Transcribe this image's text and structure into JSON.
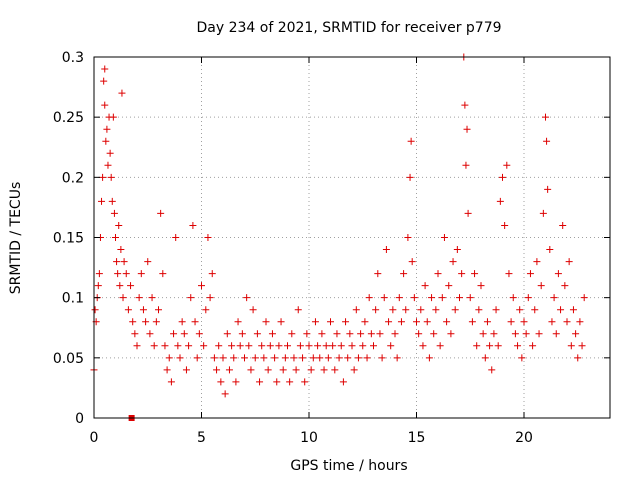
{
  "chart_data": {
    "type": "scatter",
    "title": "Day 234 of 2021, SRMTID for receiver p779",
    "xlabel": "GPS time / hours",
    "ylabel": "SRMTID / TECUs",
    "xlim": [
      0,
      24
    ],
    "ylim": [
      0,
      0.3
    ],
    "xticks": [
      0,
      5,
      10,
      15,
      20
    ],
    "yticks": [
      0,
      0.05,
      0.1,
      0.15,
      0.2,
      0.25,
      0.3
    ],
    "xtick_labels": [
      "0",
      "5",
      "10",
      "15",
      "20"
    ],
    "ytick_labels": [
      "0",
      "0.05",
      "0.1",
      "0.15",
      "0.2",
      "0.25",
      "0.3"
    ],
    "grid": true,
    "marker": "plus",
    "color": "#dd0000",
    "series": [
      {
        "name": "SRMTID",
        "points": [
          [
            0.0,
            0.04
          ],
          [
            0.05,
            0.09
          ],
          [
            0.1,
            0.08
          ],
          [
            0.15,
            0.1
          ],
          [
            0.2,
            0.11
          ],
          [
            0.25,
            0.12
          ],
          [
            0.3,
            0.15
          ],
          [
            0.35,
            0.18
          ],
          [
            0.4,
            0.2
          ],
          [
            0.45,
            0.28
          ],
          [
            0.5,
            0.29
          ],
          [
            0.5,
            0.26
          ],
          [
            0.55,
            0.23
          ],
          [
            0.6,
            0.24
          ],
          [
            0.65,
            0.21
          ],
          [
            0.7,
            0.25
          ],
          [
            0.75,
            0.22
          ],
          [
            0.8,
            0.2
          ],
          [
            0.85,
            0.18
          ],
          [
            0.9,
            0.25
          ],
          [
            0.95,
            0.17
          ],
          [
            1.0,
            0.15
          ],
          [
            1.05,
            0.13
          ],
          [
            1.1,
            0.12
          ],
          [
            1.15,
            0.16
          ],
          [
            1.2,
            0.11
          ],
          [
            1.25,
            0.14
          ],
          [
            1.3,
            0.27
          ],
          [
            1.35,
            0.1
          ],
          [
            1.4,
            0.13
          ],
          [
            1.5,
            0.12
          ],
          [
            1.6,
            0.09
          ],
          [
            1.7,
            0.11
          ],
          [
            1.8,
            0.08
          ],
          [
            1.9,
            0.07
          ],
          [
            2.0,
            0.06
          ],
          [
            2.1,
            0.1
          ],
          [
            2.2,
            0.12
          ],
          [
            2.3,
            0.09
          ],
          [
            2.4,
            0.08
          ],
          [
            2.5,
            0.13
          ],
          [
            2.6,
            0.07
          ],
          [
            2.7,
            0.1
          ],
          [
            2.8,
            0.06
          ],
          [
            2.9,
            0.08
          ],
          [
            3.0,
            0.09
          ],
          [
            3.1,
            0.17
          ],
          [
            3.2,
            0.12
          ],
          [
            3.3,
            0.06
          ],
          [
            3.4,
            0.04
          ],
          [
            3.5,
            0.05
          ],
          [
            3.6,
            0.03
          ],
          [
            3.7,
            0.07
          ],
          [
            3.8,
            0.15
          ],
          [
            3.9,
            0.06
          ],
          [
            4.0,
            0.05
          ],
          [
            4.1,
            0.08
          ],
          [
            4.2,
            0.07
          ],
          [
            4.3,
            0.04
          ],
          [
            4.4,
            0.06
          ],
          [
            4.5,
            0.1
          ],
          [
            4.6,
            0.16
          ],
          [
            4.7,
            0.08
          ],
          [
            4.8,
            0.05
          ],
          [
            4.9,
            0.07
          ],
          [
            5.0,
            0.11
          ],
          [
            5.1,
            0.06
          ],
          [
            5.2,
            0.09
          ],
          [
            5.3,
            0.15
          ],
          [
            5.4,
            0.1
          ],
          [
            5.5,
            0.12
          ],
          [
            5.6,
            0.05
          ],
          [
            5.7,
            0.04
          ],
          [
            5.8,
            0.06
          ],
          [
            5.9,
            0.03
          ],
          [
            6.0,
            0.05
          ],
          [
            6.1,
            0.02
          ],
          [
            6.2,
            0.07
          ],
          [
            6.3,
            0.04
          ],
          [
            6.4,
            0.06
          ],
          [
            6.5,
            0.05
          ],
          [
            6.6,
            0.03
          ],
          [
            6.7,
            0.08
          ],
          [
            6.8,
            0.06
          ],
          [
            6.9,
            0.07
          ],
          [
            7.0,
            0.05
          ],
          [
            7.1,
            0.1
          ],
          [
            7.2,
            0.06
          ],
          [
            7.3,
            0.04
          ],
          [
            7.4,
            0.09
          ],
          [
            7.5,
            0.05
          ],
          [
            7.6,
            0.07
          ],
          [
            7.7,
            0.03
          ],
          [
            7.8,
            0.06
          ],
          [
            7.9,
            0.05
          ],
          [
            8.0,
            0.08
          ],
          [
            8.1,
            0.04
          ],
          [
            8.2,
            0.06
          ],
          [
            8.3,
            0.07
          ],
          [
            8.4,
            0.05
          ],
          [
            8.5,
            0.03
          ],
          [
            8.6,
            0.06
          ],
          [
            8.7,
            0.08
          ],
          [
            8.8,
            0.04
          ],
          [
            8.9,
            0.05
          ],
          [
            9.0,
            0.06
          ],
          [
            9.1,
            0.03
          ],
          [
            9.2,
            0.07
          ],
          [
            9.3,
            0.05
          ],
          [
            9.4,
            0.04
          ],
          [
            9.5,
            0.09
          ],
          [
            9.6,
            0.06
          ],
          [
            9.7,
            0.05
          ],
          [
            9.8,
            0.03
          ],
          [
            9.9,
            0.07
          ],
          [
            10.0,
            0.06
          ],
          [
            10.1,
            0.04
          ],
          [
            10.2,
            0.05
          ],
          [
            10.3,
            0.08
          ],
          [
            10.4,
            0.06
          ],
          [
            10.5,
            0.05
          ],
          [
            10.6,
            0.07
          ],
          [
            10.7,
            0.04
          ],
          [
            10.8,
            0.06
          ],
          [
            10.9,
            0.05
          ],
          [
            11.0,
            0.08
          ],
          [
            11.1,
            0.06
          ],
          [
            11.2,
            0.04
          ],
          [
            11.3,
            0.07
          ],
          [
            11.4,
            0.05
          ],
          [
            11.5,
            0.06
          ],
          [
            11.6,
            0.03
          ],
          [
            11.7,
            0.08
          ],
          [
            11.8,
            0.05
          ],
          [
            11.9,
            0.07
          ],
          [
            12.0,
            0.06
          ],
          [
            12.1,
            0.04
          ],
          [
            12.2,
            0.09
          ],
          [
            12.3,
            0.05
          ],
          [
            12.4,
            0.07
          ],
          [
            12.5,
            0.06
          ],
          [
            12.6,
            0.08
          ],
          [
            12.7,
            0.05
          ],
          [
            12.8,
            0.1
          ],
          [
            12.9,
            0.07
          ],
          [
            13.0,
            0.06
          ],
          [
            13.1,
            0.09
          ],
          [
            13.2,
            0.12
          ],
          [
            13.3,
            0.07
          ],
          [
            13.4,
            0.05
          ],
          [
            13.5,
            0.1
          ],
          [
            13.6,
            0.14
          ],
          [
            13.7,
            0.08
          ],
          [
            13.8,
            0.06
          ],
          [
            13.9,
            0.09
          ],
          [
            14.0,
            0.07
          ],
          [
            14.1,
            0.05
          ],
          [
            14.2,
            0.1
          ],
          [
            14.3,
            0.08
          ],
          [
            14.4,
            0.12
          ],
          [
            14.5,
            0.09
          ],
          [
            14.6,
            0.15
          ],
          [
            14.7,
            0.2
          ],
          [
            14.75,
            0.23
          ],
          [
            14.8,
            0.13
          ],
          [
            14.9,
            0.1
          ],
          [
            15.0,
            0.08
          ],
          [
            15.1,
            0.07
          ],
          [
            15.2,
            0.09
          ],
          [
            15.3,
            0.06
          ],
          [
            15.4,
            0.11
          ],
          [
            15.5,
            0.08
          ],
          [
            15.6,
            0.05
          ],
          [
            15.7,
            0.1
          ],
          [
            15.8,
            0.07
          ],
          [
            15.9,
            0.09
          ],
          [
            16.0,
            0.12
          ],
          [
            16.1,
            0.06
          ],
          [
            16.2,
            0.1
          ],
          [
            16.3,
            0.15
          ],
          [
            16.4,
            0.08
          ],
          [
            16.5,
            0.11
          ],
          [
            16.6,
            0.07
          ],
          [
            16.7,
            0.13
          ],
          [
            16.8,
            0.09
          ],
          [
            16.9,
            0.14
          ],
          [
            17.0,
            0.1
          ],
          [
            17.1,
            0.12
          ],
          [
            17.2,
            0.3
          ],
          [
            17.25,
            0.26
          ],
          [
            17.3,
            0.21
          ],
          [
            17.35,
            0.24
          ],
          [
            17.4,
            0.17
          ],
          [
            17.5,
            0.1
          ],
          [
            17.6,
            0.08
          ],
          [
            17.7,
            0.12
          ],
          [
            17.8,
            0.06
          ],
          [
            17.9,
            0.09
          ],
          [
            18.0,
            0.11
          ],
          [
            18.1,
            0.07
          ],
          [
            18.2,
            0.05
          ],
          [
            18.3,
            0.08
          ],
          [
            18.4,
            0.06
          ],
          [
            18.5,
            0.04
          ],
          [
            18.6,
            0.07
          ],
          [
            18.7,
            0.09
          ],
          [
            18.8,
            0.06
          ],
          [
            18.9,
            0.18
          ],
          [
            19.0,
            0.2
          ],
          [
            19.1,
            0.16
          ],
          [
            19.2,
            0.21
          ],
          [
            19.3,
            0.12
          ],
          [
            19.4,
            0.08
          ],
          [
            19.5,
            0.1
          ],
          [
            19.6,
            0.07
          ],
          [
            19.7,
            0.06
          ],
          [
            19.8,
            0.09
          ],
          [
            19.9,
            0.05
          ],
          [
            20.0,
            0.08
          ],
          [
            20.1,
            0.07
          ],
          [
            20.2,
            0.1
          ],
          [
            20.3,
            0.12
          ],
          [
            20.4,
            0.06
          ],
          [
            20.5,
            0.09
          ],
          [
            20.6,
            0.13
          ],
          [
            20.7,
            0.07
          ],
          [
            20.8,
            0.11
          ],
          [
            20.9,
            0.17
          ],
          [
            21.0,
            0.25
          ],
          [
            21.05,
            0.23
          ],
          [
            21.1,
            0.19
          ],
          [
            21.2,
            0.14
          ],
          [
            21.3,
            0.08
          ],
          [
            21.4,
            0.1
          ],
          [
            21.5,
            0.07
          ],
          [
            21.6,
            0.12
          ],
          [
            21.7,
            0.09
          ],
          [
            21.8,
            0.16
          ],
          [
            21.9,
            0.11
          ],
          [
            22.0,
            0.08
          ],
          [
            22.1,
            0.13
          ],
          [
            22.2,
            0.06
          ],
          [
            22.3,
            0.09
          ],
          [
            22.4,
            0.07
          ],
          [
            22.5,
            0.05
          ],
          [
            22.6,
            0.08
          ],
          [
            22.7,
            0.06
          ],
          [
            22.8,
            0.1
          ]
        ]
      }
    ],
    "extra_mark": {
      "x": 1.75,
      "y": 0,
      "marker": "square"
    }
  }
}
